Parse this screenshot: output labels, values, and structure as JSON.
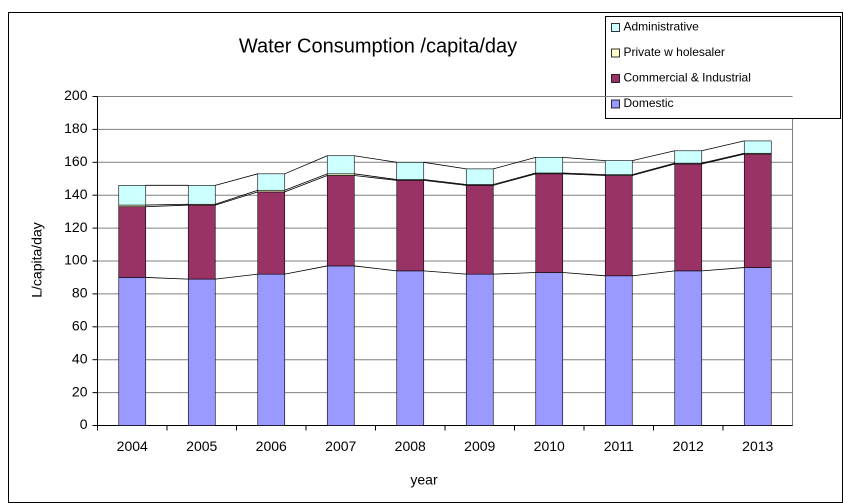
{
  "chart_data": {
    "type": "stacked_bar",
    "title": "Water Consumption /capita/day",
    "x_label": "year",
    "y_label": "L/capita/day",
    "categories": [
      "2004",
      "2005",
      "2006",
      "2007",
      "2008",
      "2009",
      "2010",
      "2011",
      "2012",
      "2013"
    ],
    "series": [
      {
        "name": "Domestic",
        "color": "#9999ff",
        "values": [
          90,
          89,
          92,
          97,
          94,
          92,
          93,
          91,
          94,
          96
        ]
      },
      {
        "name": "Commercial & Industrial",
        "color": "#993366",
        "values": [
          43,
          45,
          50,
          55,
          55,
          54,
          60,
          61,
          65,
          69
        ]
      },
      {
        "name": "Private w holesaler",
        "color": "#ffffcc",
        "values": [
          1,
          0.5,
          1,
          1,
          0.5,
          0.5,
          0.5,
          0.5,
          0.5,
          0.5
        ]
      },
      {
        "name": "Administrative",
        "color": "#ccffff",
        "values": [
          12,
          11.5,
          10,
          11,
          10.5,
          9.5,
          9.5,
          8.5,
          7.5,
          7.5
        ]
      }
    ],
    "ylim": [
      0,
      200
    ],
    "yticks": [
      0,
      20,
      40,
      60,
      80,
      100,
      120,
      140,
      160,
      180,
      200
    ],
    "grid": true,
    "legend": "upper right"
  }
}
